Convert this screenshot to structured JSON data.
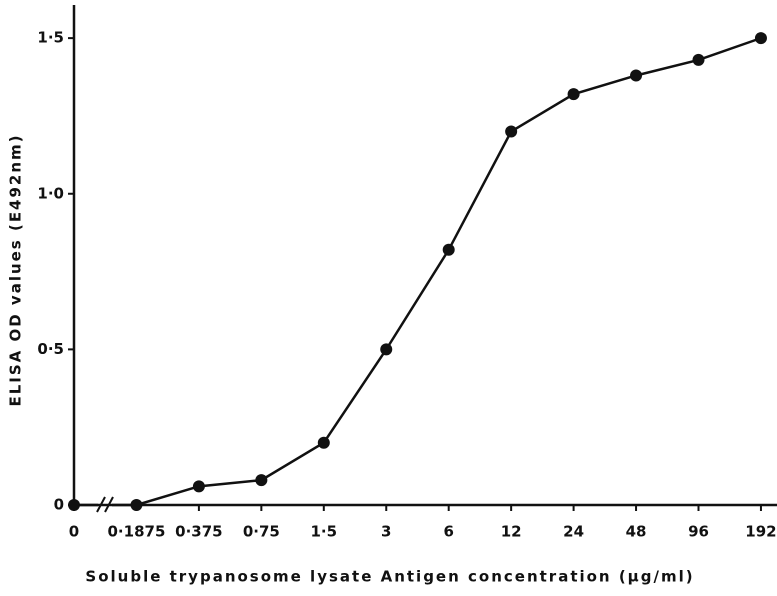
{
  "chart_data": {
    "type": "line",
    "x_label": "Soluble trypanosome lysate Antigen concentration (µg/ml)",
    "y_label": "ELISA OD values (E492nm)",
    "categories": [
      "0",
      "0·1875",
      "0·375",
      "0·75",
      "1·5",
      "3",
      "6",
      "12",
      "24",
      "48",
      "96",
      "192"
    ],
    "values": [
      0,
      0,
      0.06,
      0.08,
      0.2,
      0.5,
      0.82,
      1.2,
      1.32,
      1.38,
      1.43,
      1.5
    ],
    "color": "#111111",
    "ylim": [
      0,
      1.6
    ],
    "yticks": [
      0,
      {
        "value": 0.5,
        "label": "0·5"
      },
      {
        "value": 1.0,
        "label": "1·0"
      },
      {
        "value": 1.5,
        "label": "1·5"
      }
    ]
  }
}
